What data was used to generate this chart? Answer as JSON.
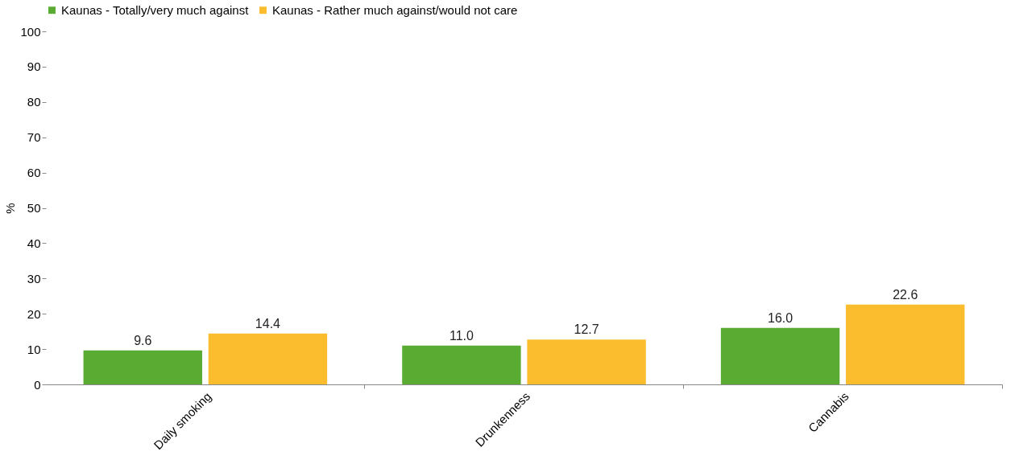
{
  "chart_data": {
    "type": "bar",
    "ylabel": "%",
    "categories": [
      "Daily smoking",
      "Drunkenness",
      "Cannabis"
    ],
    "series": [
      {
        "name": "Kaunas - Totally/very much against",
        "color": "#5aab32",
        "values": [
          9.6,
          11.0,
          16.0
        ],
        "value_labels": [
          "9.6",
          "11.0",
          "16.0"
        ]
      },
      {
        "name": "Kaunas - Rather much against/would not care",
        "color": "#fbbc2e",
        "values": [
          14.4,
          12.7,
          22.6
        ],
        "value_labels": [
          "14.4",
          "12.7",
          "22.6"
        ]
      }
    ],
    "ylim": [
      0,
      100
    ],
    "yticks": [
      0,
      10,
      20,
      30,
      40,
      50,
      60,
      70,
      80,
      90,
      100
    ],
    "grid": false,
    "legend": "top"
  }
}
